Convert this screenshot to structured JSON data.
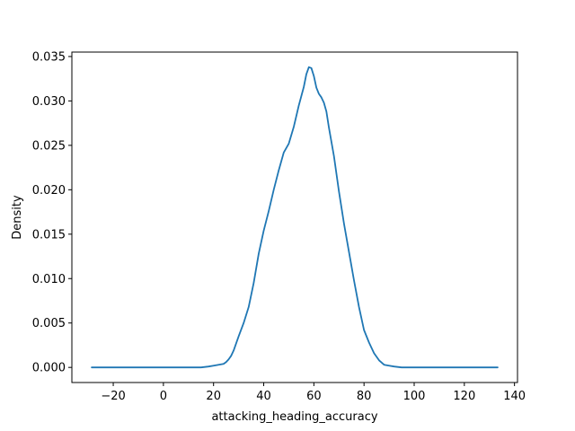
{
  "chart_data": {
    "type": "line",
    "title": "",
    "xlabel": "attacking_heading_accuracy",
    "ylabel": "Density",
    "xlim": [
      -36.5,
      141.2
    ],
    "ylim": [
      -0.0017,
      0.0355
    ],
    "xticks": [
      -20,
      0,
      20,
      40,
      60,
      80,
      100,
      120,
      140
    ],
    "xtick_labels": [
      "−20",
      "0",
      "20",
      "40",
      "60",
      "80",
      "100",
      "120",
      "140"
    ],
    "yticks": [
      0.0,
      0.005,
      0.01,
      0.015,
      0.02,
      0.025,
      0.03,
      0.035
    ],
    "ytick_labels": [
      "0.000",
      "0.005",
      "0.010",
      "0.015",
      "0.020",
      "0.025",
      "0.030",
      "0.035"
    ],
    "grid": false,
    "legend": "none",
    "line_color": "#1f77b4",
    "series": [
      {
        "x": [
          -28.6,
          -20,
          0,
          10,
          15,
          18,
          20,
          22,
          24,
          25,
          26,
          27,
          28,
          30,
          32,
          34,
          36,
          38,
          40,
          42,
          44,
          46,
          48,
          50,
          52,
          54,
          56,
          57,
          58,
          59,
          60,
          61,
          62,
          63,
          64,
          65,
          66,
          68,
          70,
          72,
          74,
          76,
          78,
          80,
          82,
          84,
          86,
          88,
          90,
          92,
          95,
          100,
          110,
          120,
          133.3
        ],
        "y": [
          0.0,
          0.0,
          0.0,
          0.0,
          0.0,
          0.0001,
          0.0002,
          0.0003,
          0.0004,
          0.0006,
          0.0009,
          0.0013,
          0.0019,
          0.0035,
          0.005,
          0.0068,
          0.0095,
          0.0128,
          0.0154,
          0.0176,
          0.02,
          0.0222,
          0.0242,
          0.0252,
          0.0271,
          0.0295,
          0.0316,
          0.033,
          0.0338,
          0.0337,
          0.0328,
          0.0315,
          0.0308,
          0.0304,
          0.0298,
          0.0288,
          0.027,
          0.0238,
          0.0198,
          0.0162,
          0.013,
          0.0098,
          0.0068,
          0.0042,
          0.0028,
          0.0016,
          0.0008,
          0.0003,
          0.0002,
          0.0001,
          0.0,
          0.0,
          0.0,
          0.0,
          0.0
        ]
      }
    ]
  }
}
